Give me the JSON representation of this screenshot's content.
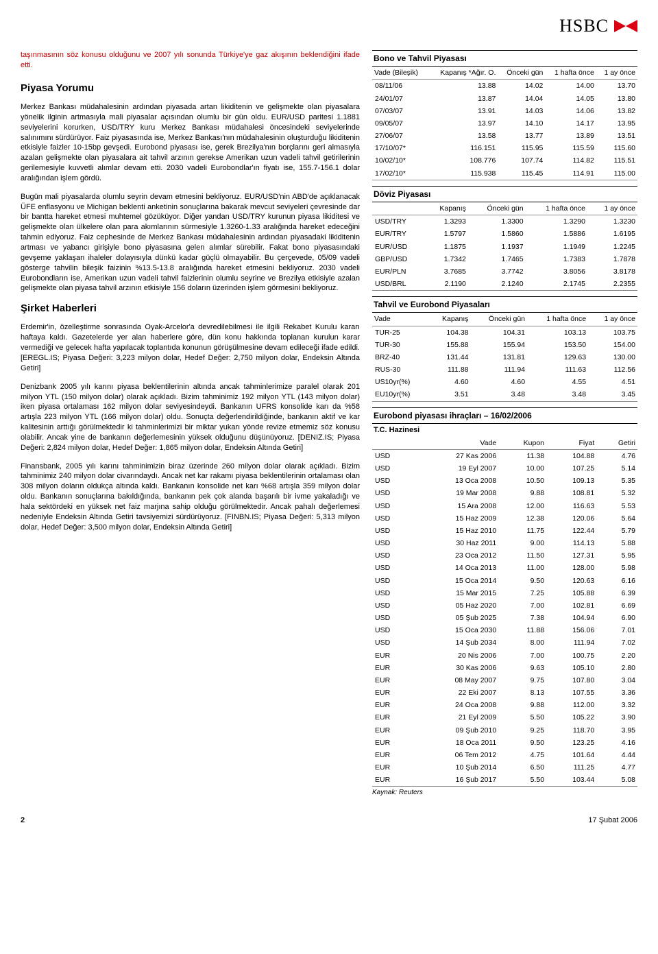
{
  "brand": "HSBC",
  "intro": "taşınmasının söz konusu olduğunu ve 2007 yılı sonunda Türkiye'ye gaz akışının beklendiğini ifade etti.",
  "section1_title": "Piyasa Yorumu",
  "section1_paras": [
    "Merkez Bankası müdahalesinin ardından piyasada artan likiditenin ve gelişmekte olan piyasalara yönelik ilginin artmasıyla mali piyasalar açısından olumlu bir gün oldu. EUR/USD paritesi 1.1881 seviyelerini korurken, USD/TRY kuru Merkez Bankası müdahalesi öncesindeki seviyelerinde salınımını sürdürüyor. Faiz piyasasında ise, Merkez Bankası'nın müdahalesinin oluşturduğu likiditenin etkisiyle faizler 10-15bp gevşedi. Eurobond piyasası ise, gerek Brezilya'nın borçlarını geri almasıyla azalan gelişmekte olan piyasalara ait tahvil arzının gerekse Amerikan uzun vadeli tahvil getirilerinin gerilemesiyle kuvvetli alımlar devam etti. 2030 vadeli Eurobondlar'ın fiyatı ise, 155.7-156.1 dolar aralığından işlem gördü.",
    "Bugün mali piyasalarda olumlu seyrin devam etmesini bekliyoruz. EUR/USD'nin ABD'de açıklanacak ÜFE enflasyonu ve Michigan beklenti anketinin sonuçlarına bakarak mevcut seviyeleri çevresinde dar bir bantta hareket etmesi muhtemel gözüküyor. Diğer yandan USD/TRY kurunun piyasa likiditesi ve gelişmekte olan ülkelere olan para akımlarının sürmesiyle 1.3260-1.33 aralığında hareket edeceğini tahmin ediyoruz. Faiz cephesinde de Merkez Bankası müdahalesinin ardından piyasadaki likiditenin artması ve yabancı girişiyle bono piyasasına gelen alımlar sürebilir. Fakat bono piyasasındaki gevşeme yaklaşan ihaleler dolayısıyla dünkü kadar güçlü olmayabilir. Bu çerçevede, 05/09 vadeli gösterge tahvilin bileşik faizinin %13.5-13.8 aralığında hareket etmesini bekliyoruz. 2030 vadeli Eurobondların ise, Amerikan uzun vadeli tahvil faizlerinin olumlu seyrine ve Brezilya etkisiyle azalan gelişmekte olan piyasa tahvil arzının etkisiyle 156 doların üzerinden işlem görmesini bekliyoruz."
  ],
  "section2_title": "Şirket Haberleri",
  "section2_paras": [
    "Erdemir'in, özelleştirme sonrasında Oyak-Arcelor'a devredilebilmesi ile ilgili Rekabet Kurulu kararı haftaya kaldı. Gazetelerde yer alan haberlere göre, dün konu hakkında toplanan kurulun karar vermediği ve gelecek hafta yapılacak toplantıda konunun görüşülmesine devam edileceği ifade edildi. [EREGL.IS; Piyasa Değeri: 3,223 milyon dolar, Hedef Değer: 2,750 milyon dolar, Endeksin Altında Getiri]",
    "Denizbank 2005 yılı karını piyasa beklentilerinin altında ancak tahminlerimize paralel olarak 201 milyon YTL (150 milyon dolar) olarak açıkladı. Bizim tahminimiz 192 milyon YTL (143 milyon dolar) iken piyasa ortalaması 162 milyon dolar seviyesindeydi. Bankanın UFRS konsolide karı da %58 artışla 223 milyon YTL (166 milyon dolar) oldu. Sonuçta değerlendirildiğinde, bankanın aktif ve kar kalitesinin arttığı görülmektedir ki tahminlerimizi bir miktar yukarı yönde revize etmemiz söz konusu olabilir. Ancak yine de bankanın değerlemesinin yüksek olduğunu düşünüyoruz. [DENIZ.IS; Piyasa Değeri: 2,824 milyon dolar, Hedef Değer: 1,865 milyon dolar, Endeksin Altında Getiri]",
    "Finansbank, 2005 yılı karını tahminimizin biraz üzerinde 260 milyon dolar olarak açıkladı. Bizim tahminimiz 240 milyon dolar civarındaydı. Ancak net kar rakamı piyasa beklentilerinin ortalaması olan 308 milyon doların oldukça altında kaldı. Bankanın konsolide net karı %68 artışla 359 milyon dolar oldu. Bankanın sonuçlarına bakıldığında, bankanın pek çok alanda başarılı bir ivme yakaladığı ve hala sektördeki en yüksek net faiz marjına sahip olduğu görülmektedir. Ancak pahalı değerlemesi nedeniyle Endeksin Altında Getiri tavsiyemizi sürdürüyoruz. [FINBN.IS; Piyasa Değeri: 5,313 milyon dolar, Hedef Değer: 3,500 milyon dolar, Endeksin Altında Getiri]"
  ],
  "bond": {
    "title": "Bono ve Tahvil Piyasası",
    "headers": [
      "Vade (Bileşik)",
      "Kapanış *Ağır. O.",
      "Önceki gün",
      "1 hafta önce",
      "1 ay önce"
    ],
    "rows": [
      [
        "08/11/06",
        "13.88",
        "14.02",
        "14.00",
        "13.70"
      ],
      [
        "24/01/07",
        "13.87",
        "14.04",
        "14.05",
        "13.80"
      ],
      [
        "07/03/07",
        "13.91",
        "14.03",
        "14.06",
        "13.82"
      ],
      [
        "09/05/07",
        "13.97",
        "14.10",
        "14.17",
        "13.95"
      ],
      [
        "27/06/07",
        "13.58",
        "13.77",
        "13.89",
        "13.51"
      ],
      [
        "17/10/07*",
        "116.151",
        "115.95",
        "115.59",
        "115.60"
      ],
      [
        "10/02/10*",
        "108.776",
        "107.74",
        "114.82",
        "115.51"
      ],
      [
        "17/02/10*",
        "115.938",
        "115.45",
        "114.91",
        "115.00"
      ]
    ]
  },
  "fx": {
    "title": "Döviz Piyasası",
    "headers": [
      "",
      "Kapanış",
      "Önceki gün",
      "1 hafta önce",
      "1 ay önce"
    ],
    "rows": [
      [
        "USD/TRY",
        "1.3293",
        "1.3300",
        "1.3290",
        "1.3230"
      ],
      [
        "EUR/TRY",
        "1.5797",
        "1.5860",
        "1.5886",
        "1.6195"
      ],
      [
        "EUR/USD",
        "1.1875",
        "1.1937",
        "1.1949",
        "1.2245"
      ],
      [
        "GBP/USD",
        "1.7342",
        "1.7465",
        "1.7383",
        "1.7878"
      ],
      [
        "EUR/PLN",
        "3.7685",
        "3.7742",
        "3.8056",
        "3.8178"
      ],
      [
        "USD/BRL",
        "2.1190",
        "2.1240",
        "2.1745",
        "2.2355"
      ]
    ]
  },
  "tahvil": {
    "title": "Tahvil ve Eurobond Piyasaları",
    "headers": [
      "Vade",
      "Kapanış",
      "Önceki gün",
      "1 hafta önce",
      "1 ay önce"
    ],
    "rows": [
      [
        "TUR-25",
        "104.38",
        "104.31",
        "103.13",
        "103.75"
      ],
      [
        "TUR-30",
        "155.88",
        "155.94",
        "153.50",
        "154.00"
      ],
      [
        "BRZ-40",
        "131.44",
        "131.81",
        "129.63",
        "130.00"
      ],
      [
        "RUS-30",
        "111.88",
        "111.94",
        "111.63",
        "112.56"
      ],
      [
        "US10yr(%)",
        "4.60",
        "4.60",
        "4.55",
        "4.51"
      ],
      [
        "EU10yr(%)",
        "3.51",
        "3.48",
        "3.48",
        "3.45"
      ]
    ]
  },
  "euro": {
    "title": "Eurobond piyasası ihraçları – 16/02/2006",
    "subtitle": "T.C. Hazinesi",
    "headers": [
      "",
      "Vade",
      "Kupon",
      "Fiyat",
      "Getiri"
    ],
    "rows": [
      [
        "USD",
        "27 Kas 2006",
        "11.38",
        "104.88",
        "4.76"
      ],
      [
        "USD",
        "19 Eyl 2007",
        "10.00",
        "107.25",
        "5.14"
      ],
      [
        "USD",
        "13 Oca 2008",
        "10.50",
        "109.13",
        "5.35"
      ],
      [
        "USD",
        "19 Mar 2008",
        "9.88",
        "108.81",
        "5.32"
      ],
      [
        "USD",
        "15 Ara 2008",
        "12.00",
        "116.63",
        "5.53"
      ],
      [
        "USD",
        "15 Haz 2009",
        "12.38",
        "120.06",
        "5.64"
      ],
      [
        "USD",
        "15 Haz 2010",
        "11.75",
        "122.44",
        "5.79"
      ],
      [
        "USD",
        "30 Haz 2011",
        "9.00",
        "114.13",
        "5.88"
      ],
      [
        "USD",
        "23 Oca 2012",
        "11.50",
        "127.31",
        "5.95"
      ],
      [
        "USD",
        "14 Oca 2013",
        "11.00",
        "128.00",
        "5.98"
      ],
      [
        "USD",
        "15 Oca 2014",
        "9.50",
        "120.63",
        "6.16"
      ],
      [
        "USD",
        "15 Mar 2015",
        "7.25",
        "105.88",
        "6.39"
      ],
      [
        "USD",
        "05 Haz 2020",
        "7.00",
        "102.81",
        "6.69"
      ],
      [
        "USD",
        "05 Şub 2025",
        "7.38",
        "104.94",
        "6.90"
      ],
      [
        "USD",
        "15 Oca 2030",
        "11.88",
        "156.06",
        "7.01"
      ],
      [
        "USD",
        "14 Şub 2034",
        "8.00",
        "111.94",
        "7.02"
      ],
      [
        "EUR",
        "20 Nis 2006",
        "7.00",
        "100.75",
        "2.20"
      ],
      [
        "EUR",
        "30 Kas 2006",
        "9.63",
        "105.10",
        "2.80"
      ],
      [
        "EUR",
        "08 May 2007",
        "9.75",
        "107.80",
        "3.04"
      ],
      [
        "EUR",
        "22 Eki 2007",
        "8.13",
        "107.55",
        "3.36"
      ],
      [
        "EUR",
        "24 Oca 2008",
        "9.88",
        "112.00",
        "3.32"
      ],
      [
        "EUR",
        "21 Eyl 2009",
        "5.50",
        "105.22",
        "3.90"
      ],
      [
        "EUR",
        "09 Şub 2010",
        "9.25",
        "118.70",
        "3.95"
      ],
      [
        "EUR",
        "18 Oca 2011",
        "9.50",
        "123.25",
        "4.16"
      ],
      [
        "EUR",
        "06 Tem 2012",
        "4.75",
        "101.64",
        "4.44"
      ],
      [
        "EUR",
        "10 Şub 2014",
        "6.50",
        "111.25",
        "4.77"
      ],
      [
        "EUR",
        "16 Şub 2017",
        "5.50",
        "103.44",
        "5.08"
      ]
    ],
    "source": "Kaynak: Reuters"
  },
  "footer": {
    "page": "2",
    "date": "17 Şubat 2006"
  }
}
